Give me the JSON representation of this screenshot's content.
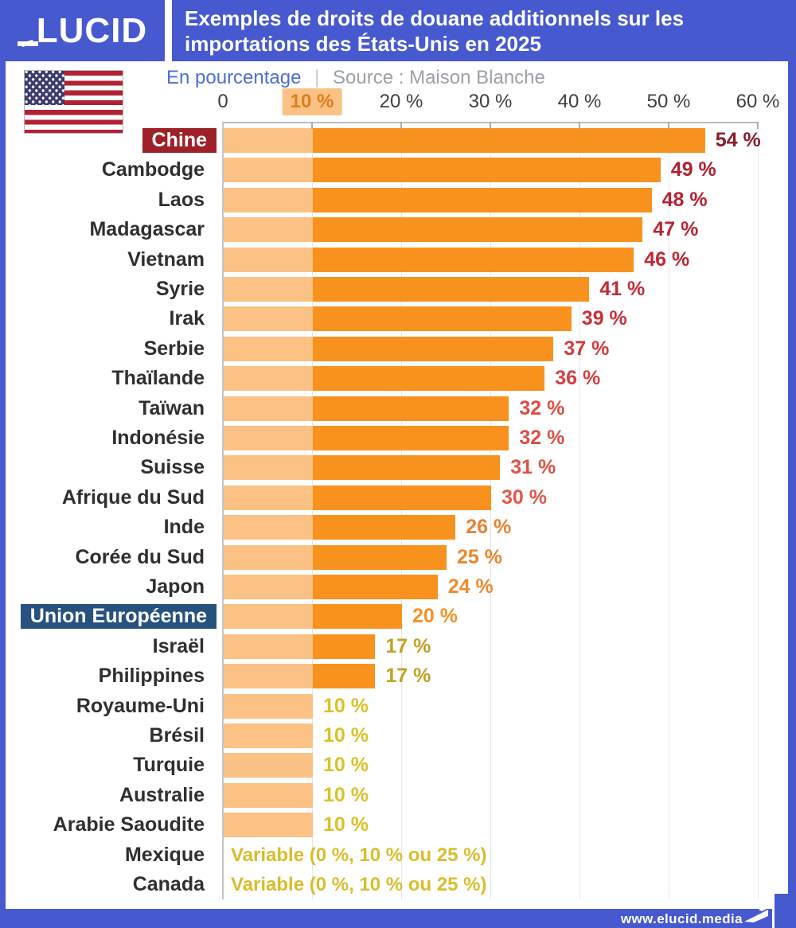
{
  "header": {
    "logo_text": "ÉLUCID",
    "logo_rest": "LUCID",
    "title_line1": "Exemples de droits de douane additionnels sur les",
    "title_line2": "importations des États-Unis en 2025"
  },
  "subtitle": {
    "unit": "En pourcentage",
    "separator": "|",
    "source": "Source : Maison Blanche"
  },
  "footer": {
    "url": "www.elucid.media"
  },
  "colors": {
    "brand_blue": "#4659cf",
    "bar_base": "#fbc185",
    "bar_main": "#f8921f",
    "badge_chine": "#9e2028",
    "badge_ue": "#27517e",
    "axis_highlight_bg": "#fbc185",
    "axis_highlight_text": "#dc7e1e"
  },
  "chart_data": {
    "type": "bar",
    "orientation": "horizontal",
    "title": "Exemples de droits de douane additionnels sur les importations des États-Unis en 2025",
    "unit_label": "En pourcentage",
    "source": "Source : Maison Blanche",
    "xlim": [
      0,
      60
    ],
    "x_ticks": [
      {
        "label": "0",
        "pct": 0,
        "highlight": false
      },
      {
        "label": "10 %",
        "pct": 10,
        "highlight": true
      },
      {
        "label": "20 %",
        "pct": 20,
        "highlight": false
      },
      {
        "label": "30 %",
        "pct": 30,
        "highlight": false
      },
      {
        "label": "40 %",
        "pct": 40,
        "highlight": false
      },
      {
        "label": "50 %",
        "pct": 50,
        "highlight": false
      },
      {
        "label": "60 %",
        "pct": 60,
        "highlight": false
      }
    ],
    "base_segment_pct": 10,
    "grid": true,
    "rows": [
      {
        "category": "Chine",
        "value": 54,
        "label": "54 %",
        "label_color": "#8a1d2b",
        "badge_bg": "#9e2028"
      },
      {
        "category": "Cambodge",
        "value": 49,
        "label": "49 %",
        "label_color": "#b02030",
        "badge_bg": null
      },
      {
        "category": "Laos",
        "value": 48,
        "label": "48 %",
        "label_color": "#b42231",
        "badge_bg": null
      },
      {
        "category": "Madagascar",
        "value": 47,
        "label": "47 %",
        "label_color": "#b92432",
        "badge_bg": null
      },
      {
        "category": "Vietnam",
        "value": 46,
        "label": "46 %",
        "label_color": "#bd2733",
        "badge_bg": null
      },
      {
        "category": "Syrie",
        "value": 41,
        "label": "41 %",
        "label_color": "#c42b36",
        "badge_bg": null
      },
      {
        "category": "Irak",
        "value": 39,
        "label": "39 %",
        "label_color": "#ca3038",
        "badge_bg": null
      },
      {
        "category": "Serbie",
        "value": 37,
        "label": "37 %",
        "label_color": "#d03a3e",
        "badge_bg": null
      },
      {
        "category": "Thaïlande",
        "value": 36,
        "label": "36 %",
        "label_color": "#d33f41",
        "badge_bg": null
      },
      {
        "category": "Taïwan",
        "value": 32,
        "label": "32 %",
        "label_color": "#dc4d44",
        "badge_bg": null
      },
      {
        "category": "Indonésie",
        "value": 32,
        "label": "32 %",
        "label_color": "#dc4d44",
        "badge_bg": null
      },
      {
        "category": "Suisse",
        "value": 31,
        "label": "31 %",
        "label_color": "#de5245",
        "badge_bg": null
      },
      {
        "category": "Afrique du Sud",
        "value": 30,
        "label": "30 %",
        "label_color": "#e05746",
        "badge_bg": null
      },
      {
        "category": "Inde",
        "value": 26,
        "label": "26 %",
        "label_color": "#eb8132",
        "badge_bg": null
      },
      {
        "category": "Corée du Sud",
        "value": 25,
        "label": "25 %",
        "label_color": "#ed862f",
        "badge_bg": null
      },
      {
        "category": "Japon",
        "value": 24,
        "label": "24 %",
        "label_color": "#ef8b2c",
        "badge_bg": null
      },
      {
        "category": "Union Européenne",
        "value": 20,
        "label": "20 %",
        "label_color": "#f29326",
        "badge_bg": "#27517e"
      },
      {
        "category": "Israël",
        "value": 17,
        "label": "17 %",
        "label_color": "#c2a124",
        "badge_bg": null
      },
      {
        "category": "Philippines",
        "value": 17,
        "label": "17 %",
        "label_color": "#c2a124",
        "badge_bg": null
      },
      {
        "category": "Royaume-Uni",
        "value": 10,
        "label": "10 %",
        "label_color": "#ddc028",
        "badge_bg": null
      },
      {
        "category": "Brésil",
        "value": 10,
        "label": "10 %",
        "label_color": "#ddc028",
        "badge_bg": null
      },
      {
        "category": "Turquie",
        "value": 10,
        "label": "10 %",
        "label_color": "#ddc028",
        "badge_bg": null
      },
      {
        "category": "Australie",
        "value": 10,
        "label": "10 %",
        "label_color": "#ddc028",
        "badge_bg": null
      },
      {
        "category": "Arabie Saoudite",
        "value": 10,
        "label": "10 %",
        "label_color": "#ddc028",
        "badge_bg": null
      },
      {
        "category": "Mexique",
        "value": null,
        "label": "Variable (0 %, 10 % ou 25 %)",
        "label_color": "#d9bd2b",
        "badge_bg": null
      },
      {
        "category": "Canada",
        "value": null,
        "label": "Variable (0 %, 10 % ou 25 %)",
        "label_color": "#d9bd2b",
        "badge_bg": null
      }
    ]
  }
}
